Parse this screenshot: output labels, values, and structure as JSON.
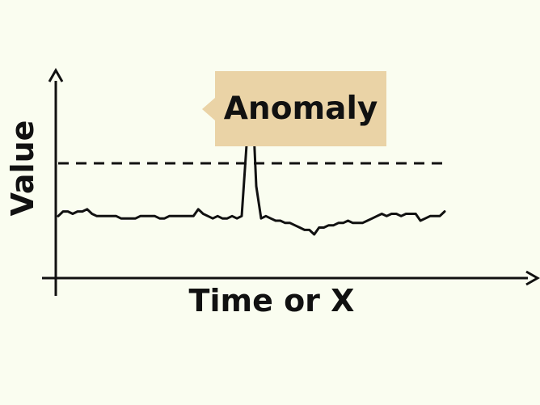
{
  "chart_data": {
    "type": "line",
    "title": "",
    "xlabel": "Time or X",
    "ylabel": "Value",
    "grid": false,
    "threshold": 50,
    "annotation": {
      "text": "Anomaly",
      "points_to": {
        "x": 40,
        "y": 87
      }
    },
    "series": [
      {
        "x": [
          0,
          1,
          2,
          3,
          4,
          5,
          6,
          7,
          8,
          9,
          10,
          11,
          12,
          13,
          14,
          15,
          16,
          17,
          18,
          19,
          20,
          21,
          22,
          23,
          24,
          25,
          26,
          27,
          28,
          29,
          30,
          31,
          32,
          33,
          34,
          35,
          36,
          37,
          38,
          39,
          40,
          41,
          42,
          43,
          44,
          45,
          46,
          47,
          48,
          49,
          50,
          51,
          52,
          53,
          54,
          55,
          56,
          57,
          58,
          59,
          60,
          61,
          62,
          63,
          64,
          65,
          66,
          67,
          68,
          69,
          70,
          71,
          72,
          73,
          74,
          75,
          76,
          77,
          78,
          79,
          80
        ],
        "values": [
          27,
          29,
          29,
          28,
          29,
          29,
          30,
          28,
          27,
          27,
          27,
          27,
          27,
          26,
          26,
          26,
          26,
          27,
          27,
          27,
          27,
          26,
          26,
          27,
          27,
          27,
          27,
          27,
          27,
          30,
          28,
          27,
          26,
          27,
          26,
          26,
          27,
          26,
          27,
          58,
          87,
          40,
          26,
          27,
          26,
          25,
          25,
          24,
          24,
          23,
          22,
          21,
          21,
          19,
          22,
          22,
          23,
          23,
          24,
          24,
          25,
          24,
          24,
          24,
          25,
          26,
          27,
          28,
          27,
          28,
          28,
          27,
          28,
          28,
          28,
          25,
          26,
          27,
          27,
          27,
          29
        ]
      }
    ]
  }
}
